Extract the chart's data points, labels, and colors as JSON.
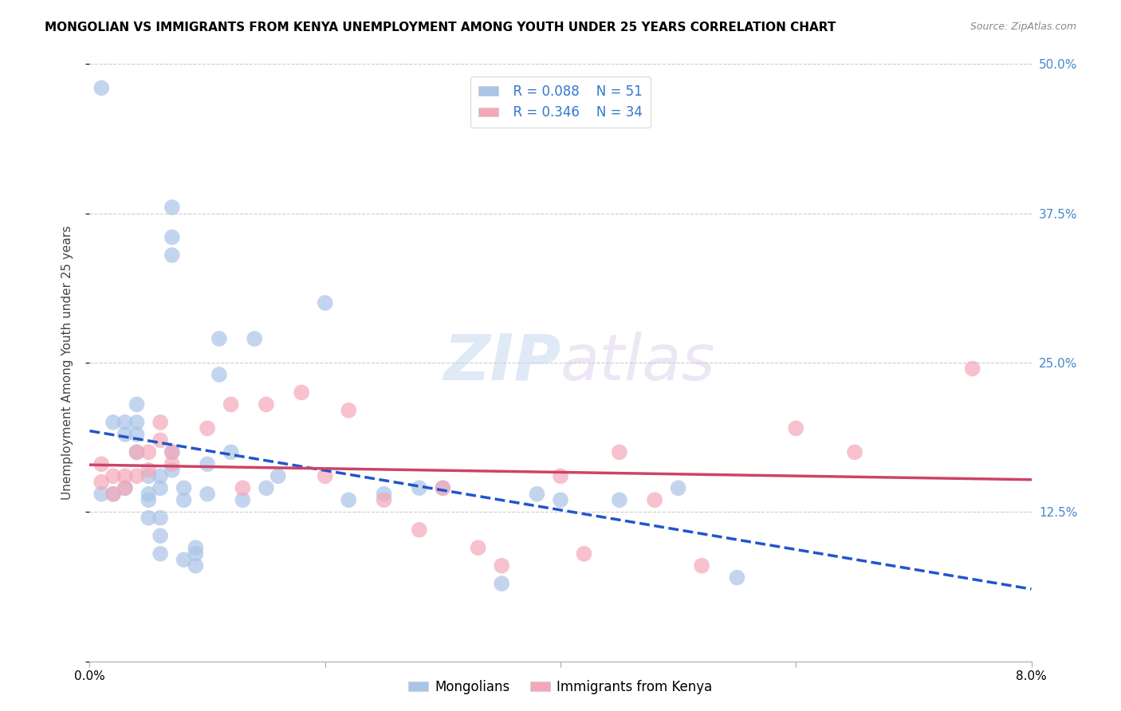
{
  "title": "MONGOLIAN VS IMMIGRANTS FROM KENYA UNEMPLOYMENT AMONG YOUTH UNDER 25 YEARS CORRELATION CHART",
  "source": "Source: ZipAtlas.com",
  "ylabel": "Unemployment Among Youth under 25 years",
  "xlim": [
    0.0,
    0.08
  ],
  "ylim": [
    0.0,
    0.5
  ],
  "yticks": [
    0.0,
    0.125,
    0.25,
    0.375,
    0.5
  ],
  "ytick_labels_right": [
    "",
    "12.5%",
    "25.0%",
    "37.5%",
    "50.0%"
  ],
  "xticks": [
    0.0,
    0.02,
    0.04,
    0.06,
    0.08
  ],
  "xtick_labels": [
    "0.0%",
    "",
    "",
    "",
    "8.0%"
  ],
  "legend_R_blue": "R = 0.088",
  "legend_N_blue": "N = 51",
  "legend_R_pink": "R = 0.346",
  "legend_N_pink": "N = 34",
  "legend_label_blue": "Mongolians",
  "legend_label_pink": "Immigrants from Kenya",
  "blue_color": "#aac4e8",
  "pink_color": "#f4a7b9",
  "blue_line_color": "#2255cc",
  "pink_line_color": "#cc4466",
  "watermark_zip": "ZIP",
  "watermark_atlas": "atlas",
  "mongolian_x": [
    0.001,
    0.001,
    0.002,
    0.002,
    0.003,
    0.003,
    0.003,
    0.004,
    0.004,
    0.004,
    0.004,
    0.005,
    0.005,
    0.005,
    0.005,
    0.006,
    0.006,
    0.006,
    0.006,
    0.006,
    0.007,
    0.007,
    0.007,
    0.007,
    0.007,
    0.008,
    0.008,
    0.008,
    0.009,
    0.009,
    0.009,
    0.01,
    0.01,
    0.011,
    0.011,
    0.012,
    0.013,
    0.014,
    0.015,
    0.016,
    0.02,
    0.022,
    0.025,
    0.028,
    0.03,
    0.035,
    0.038,
    0.04,
    0.045,
    0.05,
    0.055
  ],
  "mongolian_y": [
    0.48,
    0.14,
    0.2,
    0.14,
    0.2,
    0.19,
    0.145,
    0.215,
    0.19,
    0.2,
    0.175,
    0.155,
    0.14,
    0.135,
    0.12,
    0.155,
    0.145,
    0.12,
    0.105,
    0.09,
    0.38,
    0.355,
    0.34,
    0.175,
    0.16,
    0.145,
    0.135,
    0.085,
    0.095,
    0.09,
    0.08,
    0.165,
    0.14,
    0.27,
    0.24,
    0.175,
    0.135,
    0.27,
    0.145,
    0.155,
    0.3,
    0.135,
    0.14,
    0.145,
    0.145,
    0.065,
    0.14,
    0.135,
    0.135,
    0.145,
    0.07
  ],
  "kenya_x": [
    0.001,
    0.001,
    0.002,
    0.002,
    0.003,
    0.003,
    0.004,
    0.004,
    0.005,
    0.005,
    0.006,
    0.006,
    0.007,
    0.007,
    0.01,
    0.012,
    0.013,
    0.015,
    0.018,
    0.02,
    0.022,
    0.025,
    0.028,
    0.03,
    0.033,
    0.035,
    0.04,
    0.042,
    0.045,
    0.048,
    0.052,
    0.06,
    0.065,
    0.075
  ],
  "kenya_y": [
    0.165,
    0.15,
    0.155,
    0.14,
    0.155,
    0.145,
    0.175,
    0.155,
    0.175,
    0.16,
    0.2,
    0.185,
    0.175,
    0.165,
    0.195,
    0.215,
    0.145,
    0.215,
    0.225,
    0.155,
    0.21,
    0.135,
    0.11,
    0.145,
    0.095,
    0.08,
    0.155,
    0.09,
    0.175,
    0.135,
    0.08,
    0.195,
    0.175,
    0.245
  ]
}
